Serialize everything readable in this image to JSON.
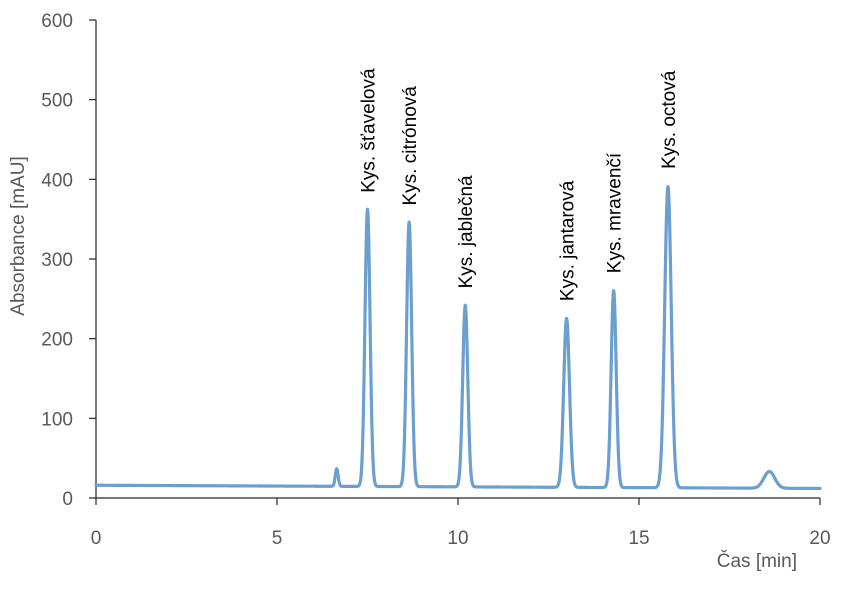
{
  "chart_data": {
    "type": "line",
    "xlabel": "Čas [min]",
    "ylabel": "Absorbance [mAU]",
    "xlim": [
      0,
      20
    ],
    "ylim": [
      0,
      600
    ],
    "x_ticks": [
      0,
      5,
      10,
      15,
      20
    ],
    "y_ticks": [
      0,
      100,
      200,
      300,
      400,
      500,
      600
    ],
    "x_tick_labels": [
      "0",
      "5",
      "10",
      "15",
      "20"
    ],
    "y_tick_labels": [
      "0",
      "100",
      "200",
      "300",
      "400",
      "500",
      "600"
    ],
    "grid": false,
    "legend": "none",
    "line_color": "#6A9FCF",
    "baseline": {
      "start": 16,
      "end": 12
    },
    "peaks": [
      {
        "t": 6.65,
        "height": 22,
        "width": 0.04
      },
      {
        "t": 7.5,
        "height": 348,
        "width": 0.07,
        "label": "Kys. šťavelová"
      },
      {
        "t": 8.65,
        "height": 332,
        "width": 0.07,
        "label": "Kys. citrónová"
      },
      {
        "t": 10.2,
        "height": 228,
        "width": 0.07,
        "label": "Kys. jablečná"
      },
      {
        "t": 13.0,
        "height": 212,
        "width": 0.08,
        "label": "Kys. jantarová"
      },
      {
        "t": 14.3,
        "height": 247,
        "width": 0.07,
        "label": "Kys. mravenčí"
      },
      {
        "t": 15.8,
        "height": 378,
        "width": 0.09,
        "label": "Kys. octová"
      },
      {
        "t": 18.6,
        "height": 21,
        "width": 0.15
      }
    ]
  }
}
